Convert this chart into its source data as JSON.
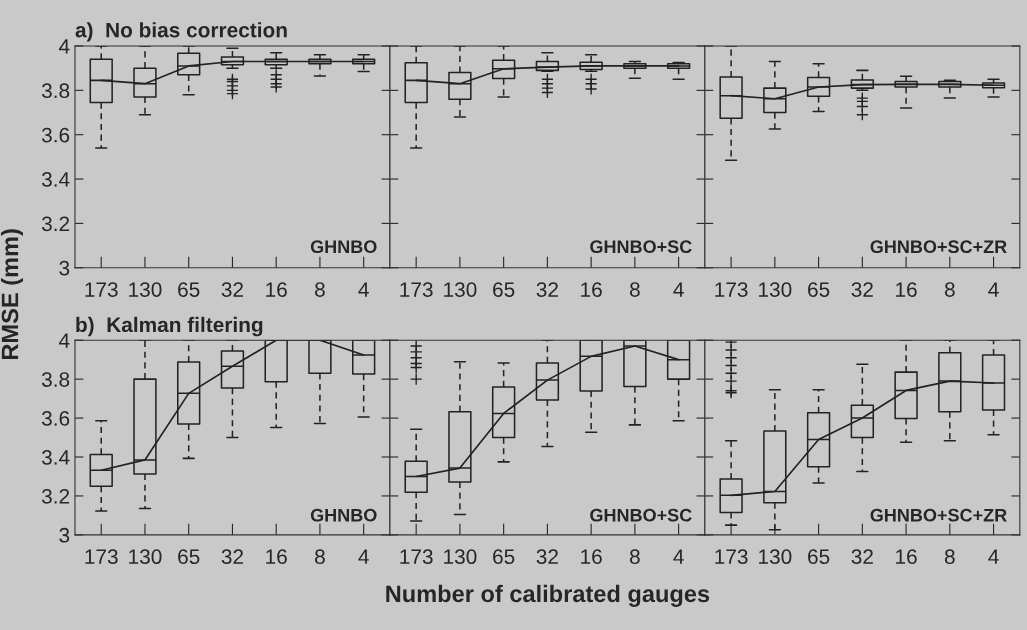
{
  "chart_data": [
    {
      "type": "box",
      "title": "a)  No bias correction",
      "ylabel": "RMSE (mm)",
      "categories": [
        "173",
        "130",
        "65",
        "32",
        "16",
        "8",
        "4"
      ],
      "ylim": [
        3,
        4
      ],
      "yticks": [
        3,
        3.2,
        3.4,
        3.6,
        3.8,
        4
      ],
      "annotations": [
        "GHNBO"
      ],
      "grid": false,
      "legend": false,
      "boxes": [
        {
          "low": 3.54,
          "q1": 3.745,
          "median": 3.845,
          "q3": 3.94,
          "high": 4.0
        },
        {
          "low": 3.69,
          "q1": 3.77,
          "median": 3.83,
          "q3": 3.9,
          "high": 4.0
        },
        {
          "low": 3.78,
          "q1": 3.87,
          "median": 3.91,
          "q3": 3.967,
          "high": 4.0
        },
        {
          "low": 3.9,
          "q1": 3.915,
          "median": 3.93,
          "q3": 3.95,
          "high": 3.99,
          "outliers": [
            3.85,
            3.84,
            3.82,
            3.8,
            3.785
          ]
        },
        {
          "low": 3.9,
          "q1": 3.915,
          "median": 3.93,
          "q3": 3.94,
          "high": 3.97,
          "outliers": [
            3.87,
            3.85,
            3.83,
            3.815
          ]
        },
        {
          "low": 3.865,
          "q1": 3.92,
          "median": 3.93,
          "q3": 3.94,
          "high": 3.96
        },
        {
          "low": 3.885,
          "q1": 3.92,
          "median": 3.93,
          "q3": 3.94,
          "high": 3.96
        }
      ],
      "series": [
        {
          "type": "line",
          "color": "#222222",
          "values": [
            3.845,
            3.83,
            3.91,
            3.93,
            3.93,
            3.93,
            3.93
          ]
        }
      ]
    },
    {
      "type": "box",
      "categories": [
        "173",
        "130",
        "65",
        "32",
        "16",
        "8",
        "4"
      ],
      "ylim": [
        3,
        4
      ],
      "yticks": [
        3,
        3.2,
        3.4,
        3.6,
        3.8,
        4
      ],
      "tick_labels": "x",
      "annotations": [
        "GHNBO+SC"
      ],
      "grid": false,
      "legend": false,
      "boxes": [
        {
          "low": 3.54,
          "q1": 3.745,
          "median": 3.845,
          "q3": 3.924,
          "high": 4.0
        },
        {
          "low": 3.68,
          "q1": 3.76,
          "median": 3.83,
          "q3": 3.88,
          "high": 4.0
        },
        {
          "low": 3.77,
          "q1": 3.853,
          "median": 3.897,
          "q3": 3.936,
          "high": 4.0
        },
        {
          "low": 3.886,
          "q1": 3.89,
          "median": 3.905,
          "q3": 3.93,
          "high": 3.97,
          "outliers": [
            3.85,
            3.83,
            3.81,
            3.79
          ]
        },
        {
          "low": 3.886,
          "q1": 3.894,
          "median": 3.91,
          "q3": 3.927,
          "high": 3.96,
          "outliers": [
            3.85,
            3.83,
            3.806
          ]
        },
        {
          "low": 3.855,
          "q1": 3.9,
          "median": 3.91,
          "q3": 3.92,
          "high": 3.93
        },
        {
          "low": 3.85,
          "q1": 3.9,
          "median": 3.91,
          "q3": 3.92,
          "high": 3.925
        }
      ],
      "series": [
        {
          "type": "line",
          "color": "#222222",
          "values": [
            3.845,
            3.83,
            3.897,
            3.905,
            3.91,
            3.91,
            3.91
          ]
        }
      ]
    },
    {
      "type": "box",
      "categories": [
        "173",
        "130",
        "65",
        "32",
        "16",
        "8",
        "4"
      ],
      "ylim": [
        3,
        4
      ],
      "yticks": [
        3,
        3.2,
        3.4,
        3.6,
        3.8,
        4
      ],
      "tick_labels": "x",
      "annotations": [
        "GHNBO+SC+ZR"
      ],
      "grid": false,
      "legend": false,
      "boxes": [
        {
          "low": 3.485,
          "q1": 3.674,
          "median": 3.776,
          "q3": 3.86,
          "high": 4.0
        },
        {
          "low": 3.626,
          "q1": 3.7,
          "median": 3.762,
          "q3": 3.81,
          "high": 3.93
        },
        {
          "low": 3.705,
          "q1": 3.773,
          "median": 3.815,
          "q3": 3.858,
          "high": 3.92
        },
        {
          "low": 3.8,
          "q1": 3.81,
          "median": 3.826,
          "q3": 3.847,
          "high": 3.89,
          "outliers": [
            3.765,
            3.75,
            3.727,
            3.69
          ]
        },
        {
          "low": 3.72,
          "q1": 3.815,
          "median": 3.827,
          "q3": 3.84,
          "high": 3.864
        },
        {
          "low": 3.765,
          "q1": 3.815,
          "median": 3.827,
          "q3": 3.84,
          "high": 3.845
        },
        {
          "low": 3.77,
          "q1": 3.812,
          "median": 3.823,
          "q3": 3.833,
          "high": 3.85
        }
      ],
      "series": [
        {
          "type": "line",
          "color": "#222222",
          "values": [
            3.776,
            3.762,
            3.815,
            3.826,
            3.827,
            3.827,
            3.823
          ]
        }
      ]
    },
    {
      "type": "box",
      "title": "b)  Kalman filtering",
      "categories": [
        "173",
        "130",
        "65",
        "32",
        "16",
        "8",
        "4"
      ],
      "ylim": [
        3,
        4
      ],
      "yticks": [
        3,
        3.2,
        3.4,
        3.6,
        3.8,
        4
      ],
      "annotations": [
        "GHNBO"
      ],
      "grid": false,
      "legend": false,
      "boxes": [
        {
          "low": 3.123,
          "q1": 3.25,
          "median": 3.332,
          "q3": 3.413,
          "high": 3.586
        },
        {
          "low": 3.135,
          "q1": 3.313,
          "median": 3.385,
          "q3": 3.8,
          "high": 4.0
        },
        {
          "low": 3.393,
          "q1": 3.57,
          "median": 3.727,
          "q3": 3.888,
          "high": 4.0
        },
        {
          "low": 3.5,
          "q1": 3.754,
          "median": 3.866,
          "q3": 3.944,
          "high": 4.0
        },
        {
          "low": 3.552,
          "q1": 3.787,
          "median": 4.0,
          "q3": 4.0,
          "high": 4.0
        },
        {
          "low": 3.572,
          "q1": 3.83,
          "median": 4.0,
          "q3": 4.0,
          "high": 4.0
        },
        {
          "low": 3.605,
          "q1": 3.826,
          "median": 3.924,
          "q3": 4.0,
          "high": 4.0
        }
      ],
      "series": [
        {
          "type": "line",
          "color": "#222222",
          "values": [
            3.332,
            3.385,
            3.727,
            3.866,
            4.0,
            4.0,
            3.924
          ]
        }
      ]
    },
    {
      "type": "box",
      "xlabel": "Number of calibrated gauges",
      "categories": [
        "173",
        "130",
        "65",
        "32",
        "16",
        "8",
        "4"
      ],
      "ylim": [
        3,
        4
      ],
      "yticks": [
        3,
        3.2,
        3.4,
        3.6,
        3.8,
        4
      ],
      "tick_labels": "x",
      "annotations": [
        "GHNBO+SC"
      ],
      "grid": false,
      "legend": false,
      "boxes": [
        {
          "low": 3.071,
          "q1": 3.219,
          "median": 3.3,
          "q3": 3.378,
          "high": 3.542,
          "outliers": [
            3.97,
            3.94,
            3.91,
            3.88,
            3.86,
            3.8
          ]
        },
        {
          "low": 3.105,
          "q1": 3.272,
          "median": 3.343,
          "q3": 3.633,
          "high": 3.889
        },
        {
          "low": 3.375,
          "q1": 3.5,
          "median": 3.624,
          "q3": 3.76,
          "high": 3.883
        },
        {
          "low": 3.454,
          "q1": 3.693,
          "median": 3.795,
          "q3": 3.883,
          "high": 4.0
        },
        {
          "low": 3.527,
          "q1": 3.739,
          "median": 3.917,
          "q3": 4.0,
          "high": 4.0
        },
        {
          "low": 3.565,
          "q1": 3.762,
          "median": 3.97,
          "q3": 4.0,
          "high": 4.0
        },
        {
          "low": 3.586,
          "q1": 3.8,
          "median": 3.9,
          "q3": 4.0,
          "high": 4.0
        }
      ],
      "series": [
        {
          "type": "line",
          "color": "#222222",
          "values": [
            3.3,
            3.343,
            3.624,
            3.795,
            3.917,
            3.97,
            3.9
          ]
        }
      ]
    },
    {
      "type": "box",
      "categories": [
        "173",
        "130",
        "65",
        "32",
        "16",
        "8",
        "4"
      ],
      "ylim": [
        3,
        4
      ],
      "yticks": [
        3,
        3.2,
        3.4,
        3.6,
        3.8,
        4
      ],
      "tick_labels": "x",
      "annotations": [
        "GHNBO+SC+ZR"
      ],
      "grid": false,
      "legend": false,
      "boxes": [
        {
          "low": 3.05,
          "q1": 3.115,
          "median": 3.203,
          "q3": 3.287,
          "high": 3.484,
          "outliers": [
            3.99,
            3.95,
            3.91,
            3.87,
            3.83,
            3.79,
            3.74,
            3.73
          ]
        },
        {
          "low": 3.026,
          "q1": 3.165,
          "median": 3.223,
          "q3": 3.533,
          "high": 3.745
        },
        {
          "low": 3.267,
          "q1": 3.35,
          "median": 3.49,
          "q3": 3.627,
          "high": 3.745
        },
        {
          "low": 3.325,
          "q1": 3.5,
          "median": 3.6,
          "q3": 3.666,
          "high": 3.876
        },
        {
          "low": 3.476,
          "q1": 3.598,
          "median": 3.742,
          "q3": 3.836,
          "high": 4.0
        },
        {
          "low": 3.484,
          "q1": 3.633,
          "median": 3.79,
          "q3": 3.936,
          "high": 4.0
        },
        {
          "low": 3.514,
          "q1": 3.642,
          "median": 3.78,
          "q3": 3.924,
          "high": 4.0
        }
      ],
      "series": [
        {
          "type": "line",
          "color": "#222222",
          "values": [
            3.203,
            3.223,
            3.49,
            3.6,
            3.742,
            3.79,
            3.78
          ]
        }
      ]
    }
  ]
}
